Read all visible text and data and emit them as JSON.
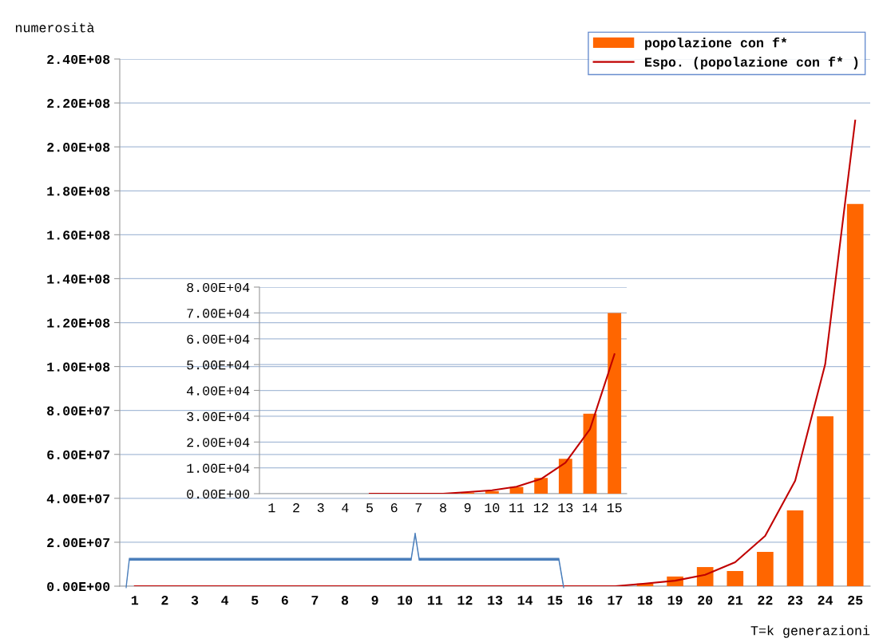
{
  "chart_data": [
    {
      "type": "bar",
      "ylabel": "numerosità",
      "xlabel": "T=k generazioni",
      "categories": [
        "1",
        "2",
        "3",
        "4",
        "5",
        "6",
        "7",
        "8",
        "9",
        "10",
        "11",
        "12",
        "13",
        "14",
        "15",
        "16",
        "17",
        "18",
        "19",
        "20",
        "21",
        "22",
        "23",
        "24",
        "25"
      ],
      "series": [
        {
          "name": "popolazione con f*",
          "color": "#ff6600",
          "values": [
            0,
            0,
            0,
            0,
            0,
            0,
            0,
            0,
            0,
            0,
            0,
            0,
            0,
            0,
            0,
            0,
            null,
            1200000,
            4400000,
            8700000,
            6900000,
            15600000,
            34500000,
            77300000,
            174000000
          ]
        },
        {
          "name": "Espo. (popolazione con f* )",
          "type": "line",
          "color": "#c00000",
          "values": [
            0,
            0,
            0,
            0,
            0,
            0,
            0,
            0,
            0,
            0,
            0,
            0,
            0,
            0,
            0,
            0,
            0,
            1200000,
            2500000,
            5200000,
            10900000,
            22900000,
            48000000,
            101000000,
            212000000
          ]
        }
      ],
      "ylim": [
        0,
        240000000
      ],
      "yticks": [
        {
          "value": 0,
          "label": "0.00E+00"
        },
        {
          "value": 20000000,
          "label": "2.00E+07"
        },
        {
          "value": 40000000,
          "label": "4.00E+07"
        },
        {
          "value": 60000000,
          "label": "6.00E+07"
        },
        {
          "value": 80000000,
          "label": "8.00E+07"
        },
        {
          "value": 100000000,
          "label": "1.00E+08"
        },
        {
          "value": 120000000,
          "label": "1.20E+08"
        },
        {
          "value": 140000000,
          "label": "1.40E+08"
        },
        {
          "value": 160000000,
          "label": "1.60E+08"
        },
        {
          "value": 180000000,
          "label": "1.80E+08"
        },
        {
          "value": 200000000,
          "label": "2.00E+08"
        },
        {
          "value": 220000000,
          "label": "2.20E+08"
        },
        {
          "value": 240000000,
          "label": "2.40E+08"
        }
      ],
      "grid": "y",
      "legend": "top right"
    },
    {
      "type": "bar",
      "categories": [
        "1",
        "2",
        "3",
        "4",
        "5",
        "6",
        "7",
        "8",
        "9",
        "10",
        "11",
        "12",
        "13",
        "14",
        "15"
      ],
      "series": [
        {
          "color": "#ff6600",
          "values": [
            0,
            0,
            0,
            0,
            0,
            0,
            0,
            0,
            400,
            1000,
            2600,
            6100,
            13500,
            31000,
            70000
          ]
        },
        {
          "type": "line",
          "color": "#c00000",
          "values": [
            null,
            null,
            null,
            null,
            0,
            0,
            0,
            0,
            600,
            1300,
            2700,
            5700,
            12000,
            25000,
            54000
          ]
        }
      ],
      "ylim": [
        0,
        80000
      ],
      "yticks": [
        {
          "value": 0,
          "label": "0.00E+00"
        },
        {
          "value": 10000,
          "label": "1.00E+04"
        },
        {
          "value": 20000,
          "label": "2.00E+04"
        },
        {
          "value": 30000,
          "label": "3.00E+04"
        },
        {
          "value": 40000,
          "label": "4.00E+04"
        },
        {
          "value": 50000,
          "label": "5.00E+04"
        },
        {
          "value": 60000,
          "label": "6.00E+04"
        },
        {
          "value": 70000,
          "label": "7.00E+04"
        },
        {
          "value": 80000,
          "label": "8.00E+04"
        }
      ],
      "grid": "y"
    }
  ]
}
